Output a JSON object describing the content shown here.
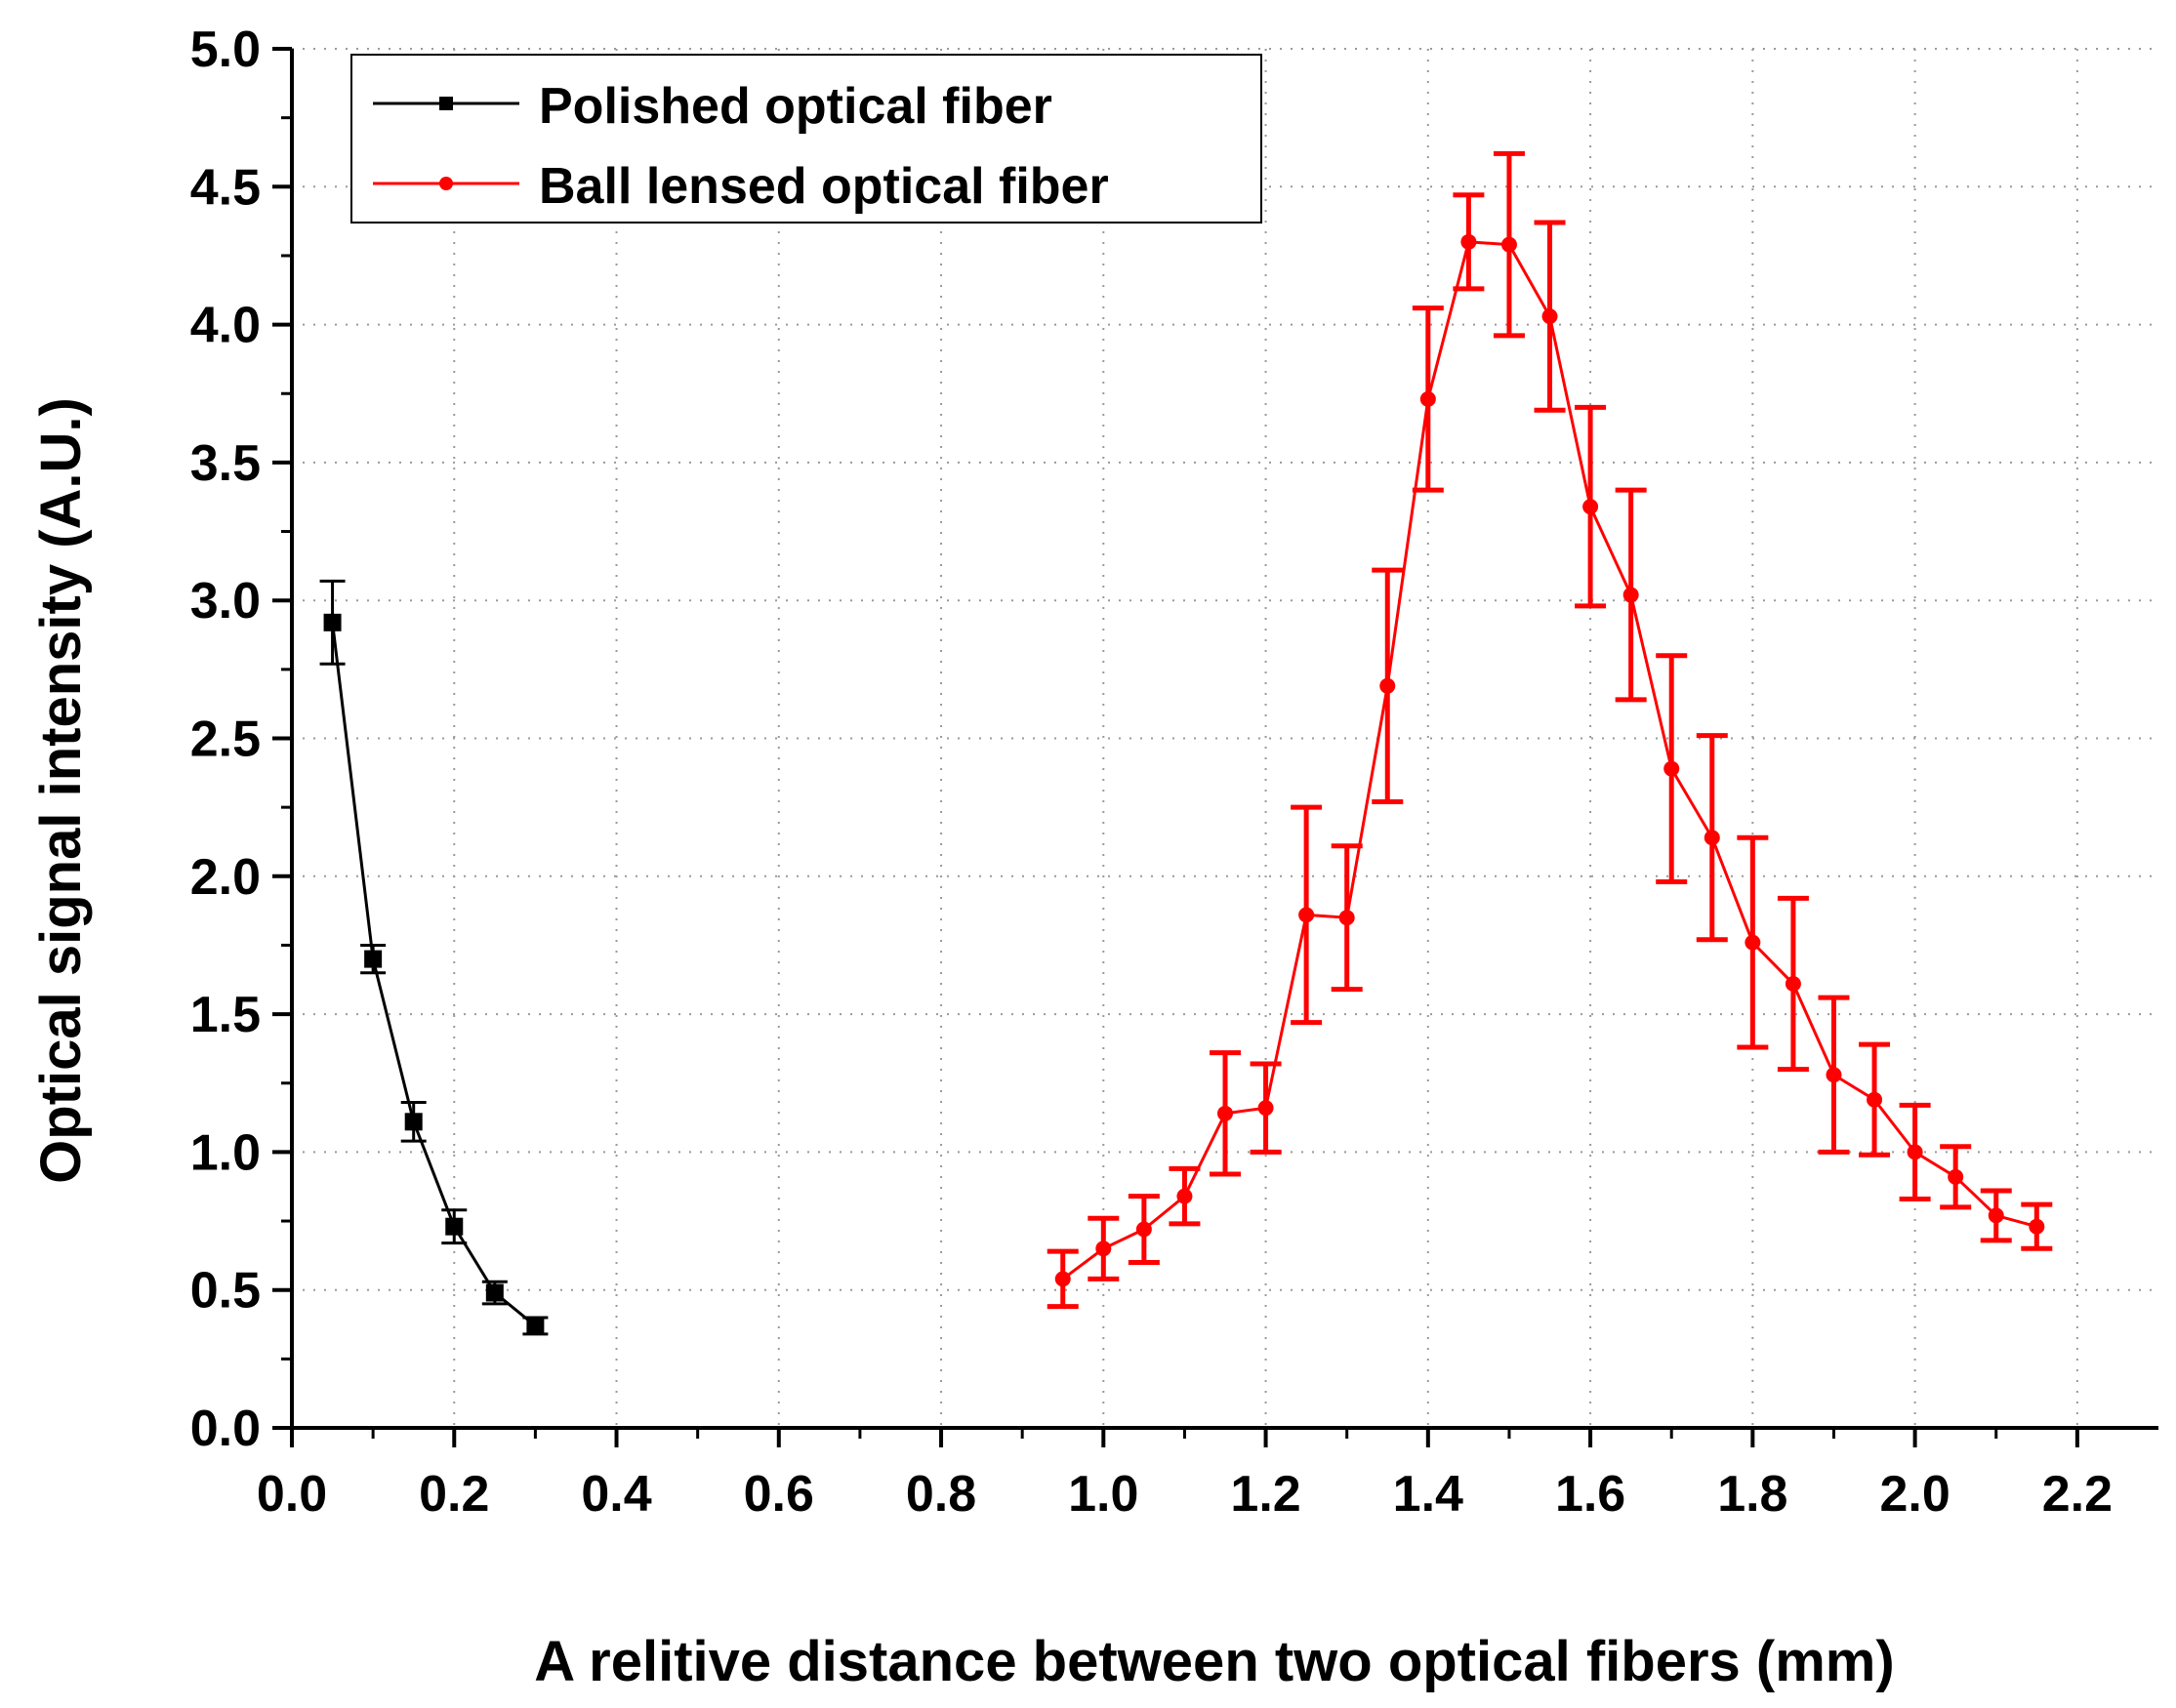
{
  "chart_data": {
    "type": "line",
    "title": "",
    "xlabel": "A relitive distance between two optical fibers (mm)",
    "ylabel": "Optical signal intensity (A.U.)",
    "xlim": [
      0.0,
      2.3
    ],
    "ylim": [
      0.0,
      5.0
    ],
    "x_ticks": [
      0.0,
      0.2,
      0.4,
      0.6,
      0.8,
      1.0,
      1.2,
      1.4,
      1.6,
      1.8,
      2.0,
      2.2
    ],
    "x_tick_labels": [
      "0.0",
      "0.2",
      "0.4",
      "0.6",
      "0.8",
      "1.0",
      "1.2",
      "1.4",
      "1.6",
      "1.8",
      "2.0",
      "2.2"
    ],
    "y_ticks": [
      0.0,
      0.5,
      1.0,
      1.5,
      2.0,
      2.5,
      3.0,
      3.5,
      4.0,
      4.5,
      5.0
    ],
    "y_tick_labels": [
      "0.0",
      "0.5",
      "1.0",
      "1.5",
      "2.0",
      "2.5",
      "3.0",
      "3.5",
      "4.0",
      "4.5",
      "5.0"
    ],
    "grid": true,
    "legend_position": "top-left",
    "series": [
      {
        "name": "Polished optical fiber",
        "color": "#000000",
        "marker": "square",
        "x": [
          0.05,
          0.1,
          0.15,
          0.2,
          0.25,
          0.3
        ],
        "y": [
          2.92,
          1.7,
          1.11,
          0.73,
          0.49,
          0.37
        ],
        "err": [
          0.15,
          0.05,
          0.07,
          0.06,
          0.04,
          0.03
        ]
      },
      {
        "name": "Ball lensed optical fiber",
        "color": "#ff0000",
        "marker": "circle",
        "x": [
          0.95,
          1.0,
          1.05,
          1.1,
          1.15,
          1.2,
          1.25,
          1.3,
          1.35,
          1.4,
          1.45,
          1.5,
          1.55,
          1.6,
          1.65,
          1.7,
          1.75,
          1.8,
          1.85,
          1.9,
          1.95,
          2.0,
          2.05,
          2.1,
          2.15
        ],
        "y": [
          0.54,
          0.65,
          0.72,
          0.84,
          1.14,
          1.16,
          1.86,
          1.85,
          2.69,
          3.73,
          4.3,
          4.29,
          4.03,
          3.34,
          3.02,
          2.39,
          2.14,
          1.76,
          1.61,
          1.28,
          1.19,
          1.0,
          0.91,
          0.77,
          0.73
        ],
        "err": [
          0.1,
          0.11,
          0.12,
          0.1,
          0.22,
          0.16,
          0.39,
          0.26,
          0.42,
          0.33,
          0.17,
          0.33,
          0.34,
          0.36,
          0.38,
          0.41,
          0.37,
          0.38,
          0.31,
          0.28,
          0.2,
          0.17,
          0.11,
          0.09,
          0.08
        ]
      }
    ]
  }
}
